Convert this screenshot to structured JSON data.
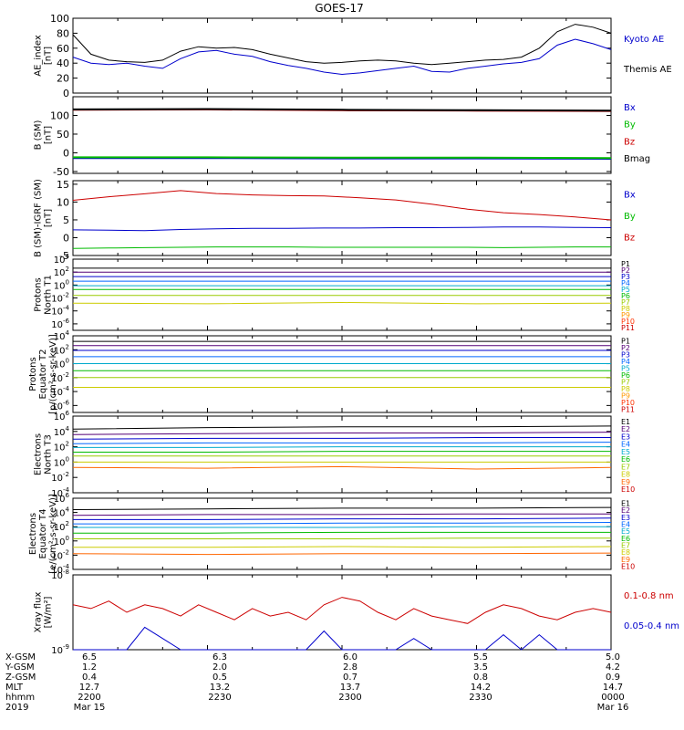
{
  "title": "GOES-17",
  "bottom_axis": {
    "rows": [
      {
        "label": "X-GSM",
        "values": [
          "6.5",
          "6.3",
          "6.0",
          "5.5",
          "5.0"
        ]
      },
      {
        "label": "Y-GSM",
        "values": [
          "1.2",
          "2.0",
          "2.8",
          "3.5",
          "4.2"
        ]
      },
      {
        "label": "Z-GSM",
        "values": [
          "0.4",
          "0.5",
          "0.7",
          "0.8",
          "0.9"
        ]
      },
      {
        "label": "MLT",
        "values": [
          "12.7",
          "13.2",
          "13.7",
          "14.2",
          "14.7"
        ]
      },
      {
        "label": "hhmm",
        "values": [
          "2200",
          "2230",
          "2300",
          "2330",
          "0000"
        ]
      },
      {
        "label": "2019",
        "values": [
          "Mar 15",
          "",
          "",
          "",
          "Mar 16"
        ]
      }
    ]
  },
  "chart_data": [
    {
      "type": "line",
      "ylabel": [
        "AE_index",
        "[nT]"
      ],
      "yscale": "linear",
      "ylim": [
        0,
        100
      ],
      "yticks": [
        0,
        20,
        40,
        60,
        80,
        100
      ],
      "x_minutes": [
        0,
        4,
        8,
        12,
        16,
        20,
        24,
        28,
        32,
        36,
        40,
        44,
        48,
        52,
        56,
        60,
        64,
        68,
        72,
        76,
        80,
        84,
        88,
        92,
        96,
        100,
        104,
        108,
        112,
        116,
        120
      ],
      "series": [
        {
          "name": "Kyoto AE",
          "color": "#0000cc",
          "values": [
            48,
            40,
            38,
            40,
            36,
            33,
            46,
            55,
            57,
            52,
            49,
            42,
            37,
            33,
            28,
            25,
            27,
            30,
            33,
            36,
            29,
            28,
            33,
            36,
            39,
            41,
            46,
            64,
            72,
            66,
            58
          ]
        },
        {
          "name": "Themis AE",
          "color": "#000000",
          "values": [
            78,
            52,
            44,
            42,
            41,
            44,
            56,
            62,
            60,
            61,
            58,
            52,
            47,
            42,
            40,
            41,
            43,
            44,
            43,
            40,
            38,
            40,
            42,
            44,
            45,
            48,
            60,
            82,
            92,
            88,
            80
          ]
        }
      ]
    },
    {
      "type": "line",
      "ylabel": [
        "B (SM)",
        "[nT]"
      ],
      "yscale": "linear",
      "ylim": [
        -55,
        150
      ],
      "yticks": [
        -50,
        0,
        50,
        100
      ],
      "x_minutes": [
        0,
        30,
        60,
        90,
        120
      ],
      "series": [
        {
          "name": "Bx",
          "color": "#0000cc",
          "values": [
            -14,
            -14,
            -15,
            -15,
            -16
          ]
        },
        {
          "name": "By",
          "color": "#00bb00",
          "values": [
            -12,
            -12,
            -13,
            -13,
            -14
          ]
        },
        {
          "name": "Bz",
          "color": "#cc0000",
          "values": [
            115,
            116,
            114,
            113,
            112
          ]
        },
        {
          "name": "Bmag",
          "color": "#000000",
          "values": [
            116,
            117,
            115,
            114,
            113
          ]
        }
      ]
    },
    {
      "type": "line",
      "ylabel": [
        "B (SM)-IGRF (SM)",
        "[nT]"
      ],
      "yscale": "linear",
      "ylim": [
        -5,
        16
      ],
      "yticks": [
        -5,
        0,
        5,
        10,
        15
      ],
      "x_minutes": [
        0,
        8,
        16,
        24,
        32,
        40,
        48,
        56,
        64,
        72,
        80,
        88,
        96,
        104,
        112,
        120
      ],
      "series": [
        {
          "name": "Bx",
          "color": "#0000cc",
          "values": [
            2.2,
            2.1,
            2.0,
            2.3,
            2.5,
            2.6,
            2.6,
            2.7,
            2.7,
            2.8,
            2.8,
            2.9,
            3.0,
            3.0,
            2.9,
            2.8
          ]
        },
        {
          "name": "By",
          "color": "#00bb00",
          "values": [
            -3.0,
            -2.9,
            -2.8,
            -2.7,
            -2.6,
            -2.6,
            -2.6,
            -2.7,
            -2.7,
            -2.7,
            -2.7,
            -2.7,
            -2.8,
            -2.7,
            -2.6,
            -2.6
          ]
        },
        {
          "name": "Bz",
          "color": "#cc0000",
          "values": [
            10.5,
            11.5,
            12.3,
            13.2,
            12.4,
            12.0,
            11.8,
            11.7,
            11.2,
            10.6,
            9.4,
            8.0,
            7.0,
            6.5,
            5.8,
            5.0
          ]
        }
      ]
    },
    {
      "type": "line",
      "ylabel": [
        "Protons",
        "North T1"
      ],
      "yscale": "log",
      "ylim": [
        -7,
        4
      ],
      "yticks_exp": [
        -6,
        -4,
        -2,
        0,
        2,
        4
      ],
      "x_minutes": [
        0,
        30,
        60,
        90,
        120
      ],
      "legend": [
        "P1",
        "P2",
        "P3",
        "P4",
        "P5",
        "P6",
        "P7",
        "P8",
        "P9",
        "P10",
        "P11"
      ],
      "colors": [
        "#000000",
        "#550077",
        "#0000cc",
        "#0066ff",
        "#00aacc",
        "#00bb00",
        "#99cc00",
        "#cccc00",
        "#ff9900",
        "#ff3300",
        "#cc0000"
      ],
      "series": [
        {
          "name": "P1",
          "log_values": [
            2.6,
            2.6,
            2.6,
            2.6,
            2.6
          ]
        },
        {
          "name": "P2",
          "log_values": [
            2.0,
            2.0,
            2.0,
            2.0,
            2.0
          ]
        },
        {
          "name": "P3",
          "log_values": [
            1.3,
            1.3,
            1.3,
            1.3,
            1.3
          ]
        },
        {
          "name": "P4",
          "log_values": [
            0.6,
            0.6,
            0.6,
            0.6,
            0.6
          ]
        },
        {
          "name": "P5",
          "log_values": [
            -0.1,
            -0.1,
            -0.1,
            -0.1,
            -0.1
          ]
        },
        {
          "name": "P6",
          "log_values": [
            -0.7,
            -0.7,
            -0.7,
            -0.7,
            -0.7
          ]
        },
        {
          "name": "P7",
          "log_values": [
            -1.6,
            -1.6,
            -1.6,
            -1.6,
            -1.6
          ]
        },
        {
          "name": "P8",
          "log_values": [
            -2.8,
            -2.9,
            -2.7,
            -2.9,
            -2.8
          ]
        }
      ]
    },
    {
      "type": "line",
      "ylabel": [
        "Protons",
        "Equator T2",
        "[p/(cm²-s-sr-keV)]"
      ],
      "yscale": "log",
      "ylim": [
        -7,
        4
      ],
      "yticks_exp": [
        -6,
        -4,
        -2,
        0,
        2,
        4
      ],
      "x_minutes": [
        0,
        30,
        60,
        90,
        120
      ],
      "legend": [
        "P1",
        "P2",
        "P3",
        "P4",
        "P5",
        "P6",
        "P7",
        "P8",
        "P9",
        "P10",
        "P11"
      ],
      "colors": [
        "#000000",
        "#550077",
        "#0000cc",
        "#0066ff",
        "#00aacc",
        "#00bb00",
        "#99cc00",
        "#cccc00",
        "#ff9900",
        "#ff3300",
        "#cc0000"
      ],
      "series": [
        {
          "name": "P1",
          "log_values": [
            3.2,
            3.2,
            3.2,
            3.2,
            3.2
          ]
        },
        {
          "name": "P2",
          "log_values": [
            2.6,
            2.6,
            2.6,
            2.6,
            2.6
          ]
        },
        {
          "name": "P3",
          "log_values": [
            1.9,
            1.9,
            1.9,
            1.9,
            1.9
          ]
        },
        {
          "name": "P4",
          "log_values": [
            1.0,
            1.0,
            1.0,
            1.0,
            1.0
          ]
        },
        {
          "name": "P5",
          "log_values": [
            0.0,
            0.0,
            0.0,
            0.0,
            0.0
          ]
        },
        {
          "name": "P6",
          "log_values": [
            -1.0,
            -1.0,
            -1.0,
            -1.0,
            -1.0
          ]
        },
        {
          "name": "P7",
          "log_values": [
            -2.0,
            -2.0,
            -2.0,
            -2.0,
            -2.0
          ]
        },
        {
          "name": "P8",
          "log_values": [
            -3.4,
            -3.4,
            -3.4,
            -3.4,
            -3.4
          ]
        }
      ]
    },
    {
      "type": "line",
      "ylabel": [
        "Electrons",
        "North T3"
      ],
      "yscale": "log",
      "ylim": [
        -4,
        6
      ],
      "yticks_exp": [
        -4,
        -2,
        0,
        2,
        4,
        6
      ],
      "x_minutes": [
        0,
        30,
        60,
        90,
        120
      ],
      "legend": [
        "E1",
        "E2",
        "E3",
        "E4",
        "E5",
        "E6",
        "E7",
        "E8",
        "E9",
        "E10"
      ],
      "colors": [
        "#000000",
        "#550077",
        "#0000cc",
        "#0066ff",
        "#00aacc",
        "#00bb00",
        "#99cc00",
        "#cccc00",
        "#ff6600",
        "#cc0000"
      ],
      "series": [
        {
          "name": "E1",
          "log_values": [
            4.3,
            4.5,
            4.6,
            4.6,
            4.7
          ]
        },
        {
          "name": "E2",
          "log_values": [
            3.6,
            3.7,
            3.8,
            3.8,
            3.9
          ]
        },
        {
          "name": "E3",
          "log_values": [
            3.0,
            3.1,
            3.1,
            3.2,
            3.2
          ]
        },
        {
          "name": "E4",
          "log_values": [
            2.4,
            2.5,
            2.5,
            2.5,
            2.6
          ]
        },
        {
          "name": "E5",
          "log_values": [
            1.9,
            1.9,
            2.0,
            2.0,
            2.0
          ]
        },
        {
          "name": "E6",
          "log_values": [
            1.3,
            1.3,
            1.4,
            1.4,
            1.4
          ]
        },
        {
          "name": "E7",
          "log_values": [
            0.8,
            0.8,
            0.8,
            0.8,
            0.8
          ]
        },
        {
          "name": "E8",
          "log_values": [
            0.0,
            0.0,
            0.0,
            0.0,
            0.0
          ]
        },
        {
          "name": "E9",
          "log_values": [
            -0.7,
            -0.8,
            -0.6,
            -0.9,
            -0.7
          ]
        }
      ]
    },
    {
      "type": "line",
      "ylabel": [
        "Electrons",
        "Equator T4",
        "[e/(cm²-s-sr-keV)]"
      ],
      "yscale": "log",
      "ylim": [
        -4,
        6
      ],
      "yticks_exp": [
        -4,
        -2,
        0,
        2,
        4,
        6
      ],
      "x_minutes": [
        0,
        30,
        60,
        90,
        120
      ],
      "legend": [
        "E1",
        "E2",
        "E3",
        "E4",
        "E5",
        "E6",
        "E7",
        "E8",
        "E9",
        "E10"
      ],
      "colors": [
        "#000000",
        "#550077",
        "#0000cc",
        "#0066ff",
        "#00aacc",
        "#00bb00",
        "#99cc00",
        "#cccc00",
        "#ff6600",
        "#cc0000"
      ],
      "series": [
        {
          "name": "E1",
          "log_values": [
            4.4,
            4.5,
            4.6,
            4.6,
            4.7
          ]
        },
        {
          "name": "E2",
          "log_values": [
            3.6,
            3.7,
            3.7,
            3.8,
            3.8
          ]
        },
        {
          "name": "E3",
          "log_values": [
            3.0,
            3.0,
            3.1,
            3.1,
            3.2
          ]
        },
        {
          "name": "E4",
          "log_values": [
            2.4,
            2.4,
            2.5,
            2.5,
            2.6
          ]
        },
        {
          "name": "E5",
          "log_values": [
            1.9,
            1.9,
            1.9,
            2.0,
            2.0
          ]
        },
        {
          "name": "E6",
          "log_values": [
            1.1,
            1.1,
            1.2,
            1.2,
            1.2
          ]
        },
        {
          "name": "E7",
          "log_values": [
            0.3,
            0.3,
            0.3,
            0.4,
            0.4
          ]
        },
        {
          "name": "E8",
          "log_values": [
            -0.9,
            -0.9,
            -0.8,
            -0.9,
            -0.8
          ]
        },
        {
          "name": "E9",
          "log_values": [
            -1.8,
            -1.9,
            -1.8,
            -1.8,
            -1.7
          ]
        }
      ]
    },
    {
      "type": "line",
      "ylabel": [
        "Xray flux",
        "[W/m²]"
      ],
      "yscale": "log",
      "ylim": [
        -9,
        -8
      ],
      "yticks_exp": [
        -9,
        -8
      ],
      "x_minutes": [
        0,
        4,
        8,
        12,
        16,
        20,
        24,
        28,
        32,
        36,
        40,
        44,
        48,
        52,
        56,
        60,
        64,
        68,
        72,
        76,
        80,
        84,
        88,
        92,
        96,
        100,
        104,
        108,
        112,
        116,
        120
      ],
      "series": [
        {
          "name": "0.1-0.8 nm",
          "color": "#cc0000",
          "log_values": [
            -8.4,
            -8.45,
            -8.35,
            -8.5,
            -8.4,
            -8.45,
            -8.55,
            -8.4,
            -8.5,
            -8.6,
            -8.45,
            -8.55,
            -8.5,
            -8.6,
            -8.4,
            -8.3,
            -8.35,
            -8.5,
            -8.6,
            -8.45,
            -8.55,
            -8.6,
            -8.65,
            -8.5,
            -8.4,
            -8.45,
            -8.55,
            -8.6,
            -8.5,
            -8.45,
            -8.5
          ]
        },
        {
          "name": "0.05-0.4 nm",
          "color": "#0000cc",
          "log_values": [
            -9.0,
            -9.0,
            -9.0,
            -9.0,
            -8.7,
            -8.85,
            -9.0,
            -9.0,
            -9.0,
            -9.0,
            -9.0,
            -9.0,
            -9.0,
            -9.0,
            -8.75,
            -9.0,
            -9.0,
            -9.0,
            -9.0,
            -8.85,
            -9.0,
            -9.0,
            -9.0,
            -9.0,
            -8.8,
            -9.0,
            -8.8,
            -9.0,
            -9.0,
            -9.0,
            -9.0
          ]
        }
      ]
    }
  ]
}
